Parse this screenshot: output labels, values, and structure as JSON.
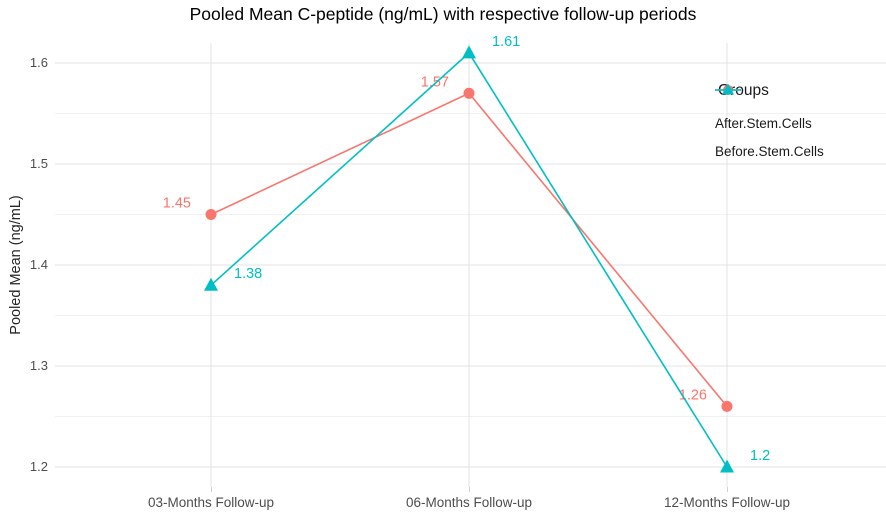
{
  "title": "Pooled Mean C-peptide (ng/mL) with respective follow-up periods",
  "legend": {
    "title": "Groups",
    "items": [
      "After.Stem.Cells",
      "Before.Stem.Cells"
    ]
  },
  "colors": {
    "after_series": "#F8766D",
    "before_series": "#00BFC4",
    "grid_major": "#e3e3e3",
    "grid_minor": "#f1f1f1",
    "tick_text": "#4d4d4d"
  },
  "chart_data": {
    "type": "line",
    "title": "Pooled Mean C-peptide (ng/mL) with respective follow-up periods",
    "xlabel": "",
    "ylabel": "Pooled Mean (ng/mL)",
    "categories": [
      "03-Months Follow-up",
      "06-Months Follow-up",
      "12-Months Follow-up"
    ],
    "series": [
      {
        "name": "After.Stem.Cells",
        "values": [
          1.45,
          1.57,
          1.26
        ],
        "point_labels": [
          "1.45",
          "1.57",
          "1.26"
        ],
        "color": "#F8766D",
        "marker": "circle",
        "label_side": "left"
      },
      {
        "name": "Before.Stem.Cells",
        "values": [
          1.38,
          1.61,
          1.2
        ],
        "point_labels": [
          "1.38",
          "1.61",
          "1.2"
        ],
        "color": "#00BFC4",
        "marker": "triangle",
        "label_side": "right"
      }
    ],
    "ylim": [
      1.2,
      1.6
    ],
    "y_ticks": [
      1.2,
      1.3,
      1.4,
      1.5,
      1.6
    ],
    "y_tick_labels": [
      "1.2",
      "1.3",
      "1.4",
      "1.5",
      "1.6"
    ],
    "y_minor_ticks": [
      1.25,
      1.35,
      1.45,
      1.55
    ],
    "grid": true,
    "legend_title": "Groups",
    "legend_position": "inside-top-right"
  }
}
